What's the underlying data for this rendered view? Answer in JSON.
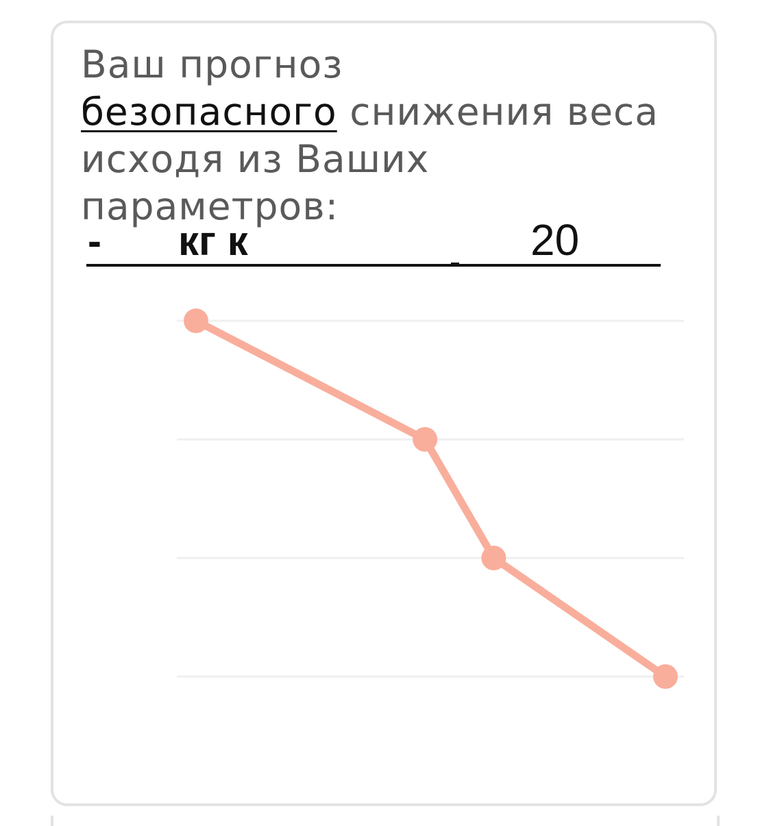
{
  "heading": {
    "line1": "Ваш прогноз",
    "highlight": "безопасного",
    "line2_rest": " снижения веса",
    "line3": "исходя из Ваших параметров:"
  },
  "result": {
    "dash": "-",
    "unit": "кг к",
    "target": "20"
  },
  "colors": {
    "line": "#f9ae9c",
    "grid": "#efefef",
    "border": "#e3e3e3",
    "heading": "#5a5a5a"
  },
  "chart_data": {
    "type": "line",
    "x": [
      0,
      1,
      1.3,
      2.05
    ],
    "series": [
      {
        "values": [
          100,
          66,
          32,
          -2
        ]
      }
    ],
    "ylim": [
      -20,
      100
    ],
    "gridlines": [
      100,
      66,
      32,
      -2
    ],
    "grid": true,
    "legend": "none"
  }
}
